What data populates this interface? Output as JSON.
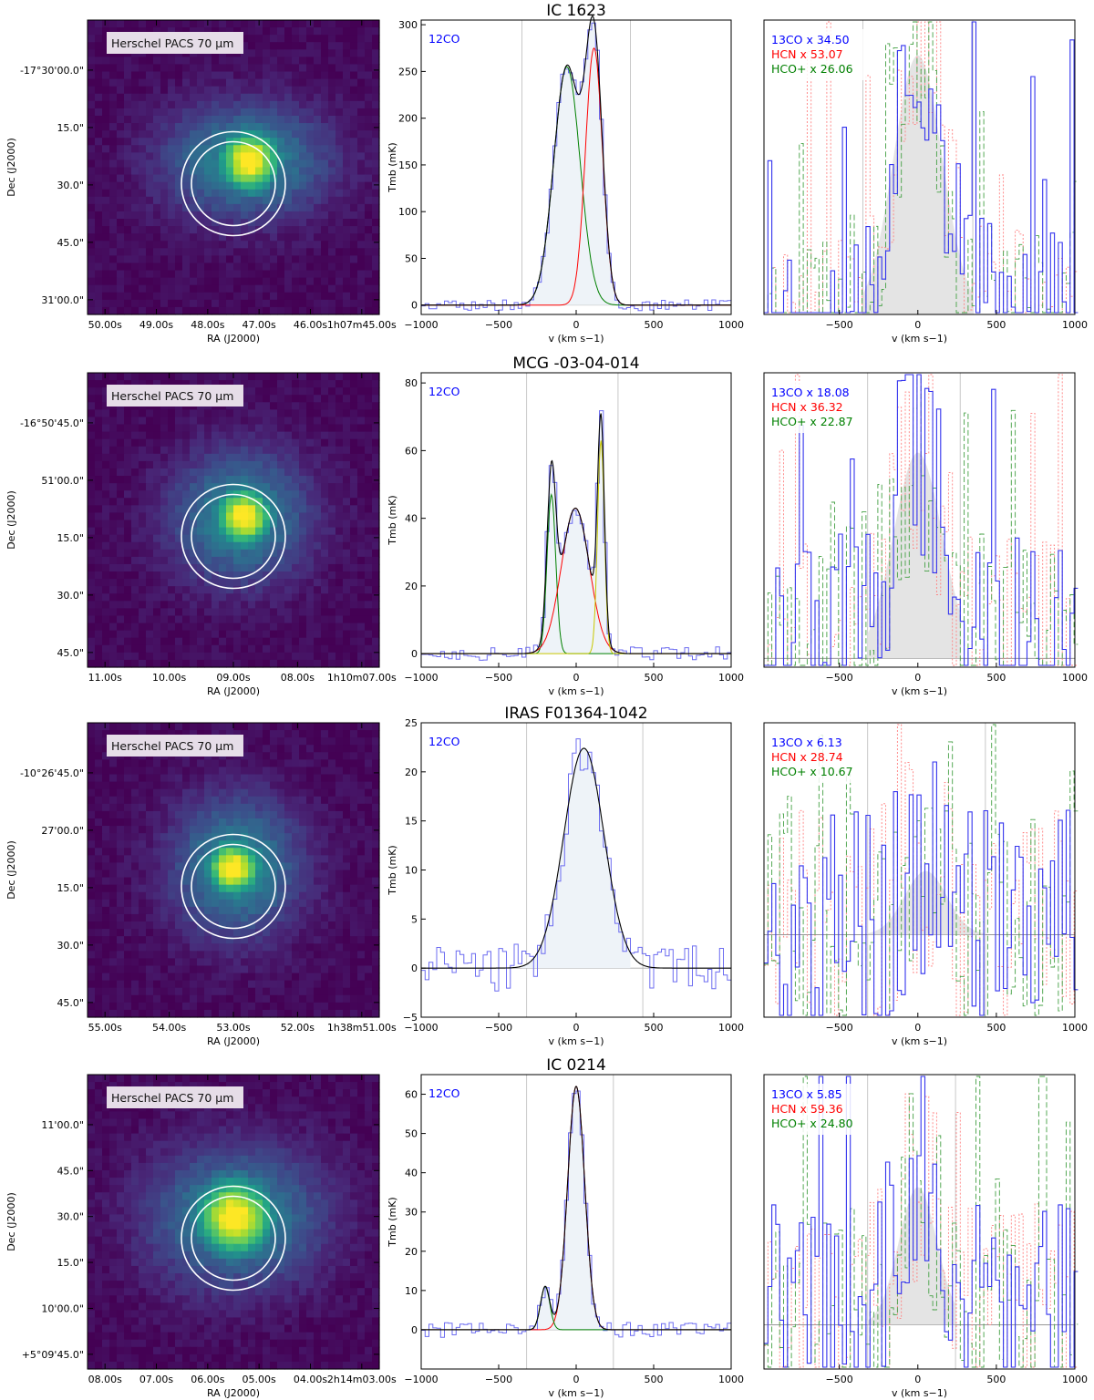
{
  "chart_data": [
    {
      "galaxy": "IC 1623",
      "image": {
        "badge": "Herschel PACS 70 μm",
        "xlabel": "RA (J2000)",
        "ylabel": "Dec (J2000)",
        "ra_ticks": [
          "50.00s",
          "49.00s",
          "48.00s",
          "47.00s",
          "46.00s",
          "1h07m45.00s"
        ],
        "dec_ticks": [
          "-17°30'00.0\"",
          "15.0\"",
          "30.0\"",
          "45.0\"",
          "31'00.0\""
        ],
        "source_offset": [
          0.55,
          -0.2
        ],
        "source_sigma": 0.16,
        "halo": {
          "offset": [
            0.45,
            -0.2
          ],
          "sigma_x": 0.38,
          "sigma_y": 0.26
        },
        "extra": {
          "offset": [
            0.65,
            -0.25
          ],
          "sigma": 0.12,
          "amp": 0.3
        }
      },
      "co12": {
        "type": "line",
        "title": "IC 1623",
        "label": "12CO",
        "xlabel": "v (km s−1)",
        "ylabel": "Tmb (mK)",
        "xlim": [
          -1000,
          1000
        ],
        "ylim": [
          -10,
          305
        ],
        "xticks": [
          -1000,
          -500,
          0,
          500,
          1000
        ],
        "yticks": [
          0,
          50,
          100,
          150,
          200,
          250,
          300
        ],
        "vlines": [
          -350,
          350
        ],
        "components": [
          {
            "amp": 255,
            "center": -60,
            "sigma": 85,
            "color": "#008000"
          },
          {
            "amp": 275,
            "center": 115,
            "sigma": 55,
            "color": "#ff0000"
          }
        ],
        "noise": 6
      },
      "dense": {
        "type": "line",
        "xlabel": "v (km s−1)",
        "xlim": [
          -980,
          1000
        ],
        "xticks": [
          -500,
          0,
          500,
          1000
        ],
        "vlines": [
          -350,
          350
        ],
        "zero_frac": 0.0,
        "legend": [
          "13CO x 34.50",
          "HCN x 53.07",
          "HCO+ x 26.06"
        ],
        "center": 0,
        "width": 230,
        "peak": 0.88,
        "noise": 0.3
      }
    },
    {
      "galaxy": "MCG -03-04-014",
      "image": {
        "badge": "Herschel PACS 70 μm",
        "xlabel": "RA (J2000)",
        "ylabel": "Dec (J2000)",
        "ra_ticks": [
          "11.00s",
          "10.00s",
          "09.00s",
          "08.00s",
          "1h10m07.00s"
        ],
        "dec_ticks": [
          "-16°50'45.0\"",
          "51'00.0\"",
          "15.0\"",
          "30.0\"",
          "45.0\""
        ],
        "source_offset": [
          0.35,
          -0.1
        ],
        "source_sigma": 0.15,
        "halo": {
          "offset": [
            0.25,
            -0.1
          ],
          "sigma_x": 0.32,
          "sigma_y": 0.3
        }
      },
      "co12": {
        "type": "line",
        "title": "MCG -03-04-014",
        "label": "12CO",
        "xlabel": "v (km s−1)",
        "ylabel": "Tmb (mK)",
        "xlim": [
          -1000,
          1000
        ],
        "ylim": [
          -4,
          83
        ],
        "xticks": [
          -1000,
          -500,
          0,
          500,
          1000
        ],
        "yticks": [
          0,
          20,
          40,
          60,
          80
        ],
        "vlines": [
          -320,
          270
        ],
        "components": [
          {
            "amp": 47,
            "center": -160,
            "sigma": 28,
            "color": "#008000"
          },
          {
            "amp": 43,
            "center": -5,
            "sigma": 90,
            "color": "#ff0000"
          },
          {
            "amp": 63,
            "center": 160,
            "sigma": 22,
            "color": "#c8c800"
          }
        ],
        "noise": 2
      },
      "dense": {
        "type": "line",
        "xlabel": "v (km s−1)",
        "xlim": [
          -980,
          1000
        ],
        "xticks": [
          -500,
          0,
          500,
          1000
        ],
        "vlines": [
          -320,
          270
        ],
        "zero_frac": 0.03,
        "legend": [
          "13CO x 18.08",
          "HCN x 36.32",
          "HCO+ x 22.87"
        ],
        "center": 0,
        "width": 230,
        "peak": 0.72,
        "noise": 0.42
      }
    },
    {
      "galaxy": "IRAS F01364-1042",
      "image": {
        "badge": "Herschel PACS 70 μm",
        "xlabel": "RA (J2000)",
        "ylabel": "Dec (J2000)",
        "ra_ticks": [
          "55.00s",
          "54.00s",
          "53.00s",
          "52.00s",
          "1h38m51.00s"
        ],
        "dec_ticks": [
          "-10°26'45.0\"",
          "27'00.0\"",
          "15.0\"",
          "30.0\"",
          "45.0\""
        ],
        "source_offset": [
          0.0,
          -0.05
        ],
        "source_sigma": 0.14,
        "halo": {
          "offset": [
            0.1,
            -0.1
          ],
          "sigma_x": 0.3,
          "sigma_y": 0.32
        }
      },
      "co12": {
        "type": "line",
        "title": "IRAS F01364-1042",
        "label": "12CO",
        "xlabel": "v (km s−1)",
        "ylabel": "Tmb (mK)",
        "xlim": [
          -1000,
          1000
        ],
        "ylim": [
          -5,
          25
        ],
        "xticks": [
          -1000,
          -500,
          0,
          500,
          1000
        ],
        "yticks": [
          -5,
          0,
          5,
          10,
          15,
          20,
          25
        ],
        "vlines": [
          -320,
          430
        ],
        "components": [
          {
            "amp": 22.4,
            "center": 50,
            "sigma": 130,
            "color": "#000000"
          }
        ],
        "noise": 2.4
      },
      "dense": {
        "type": "line",
        "xlabel": "v (km s−1)",
        "xlim": [
          -980,
          1000
        ],
        "xticks": [
          -500,
          0,
          500,
          1000
        ],
        "vlines": [
          -320,
          430
        ],
        "zero_frac": 0.28,
        "legend": [
          "13CO x 6.13",
          "HCN x 28.74",
          "HCO+ x 10.67"
        ],
        "center": 50,
        "width": 200,
        "peak": 0.3,
        "noise": 0.55
      }
    },
    {
      "galaxy": "IC 0214",
      "image": {
        "badge": "Herschel PACS 70 μm",
        "xlabel": "RA (J2000)",
        "ylabel": "Dec (J2000)",
        "ra_ticks": [
          "08.00s",
          "07.00s",
          "06.00s",
          "05.00s",
          "04.00s",
          "2h14m03.00s"
        ],
        "dec_ticks": [
          "11'00.0\"",
          "45.0\"",
          "30.0\"",
          "15.0\"",
          "10'00.0\"",
          "+5°09'45.0\""
        ],
        "source_offset": [
          0.05,
          -0.15
        ],
        "source_sigma": 0.2,
        "halo": {
          "offset": [
            0.1,
            -0.15
          ],
          "sigma_x": 0.4,
          "sigma_y": 0.32
        },
        "extra": {
          "offset": [
            0.35,
            -0.35
          ],
          "sigma": 0.12,
          "amp": 0.5
        }
      },
      "co12": {
        "type": "line",
        "title": "IC 0214",
        "label": "12CO",
        "xlabel": "v (km s−1)",
        "ylabel": "Tmb (mK)",
        "xlim": [
          -1000,
          1000
        ],
        "ylim": [
          -10,
          65
        ],
        "xticks": [
          -1000,
          -500,
          0,
          500,
          1000
        ],
        "yticks": [
          0,
          10,
          20,
          30,
          40,
          50,
          60
        ],
        "vlines": [
          -320,
          240
        ],
        "components": [
          {
            "amp": 62,
            "center": 0,
            "sigma": 55,
            "color": "#ff0000"
          },
          {
            "amp": 11,
            "center": -200,
            "sigma": 30,
            "color": "#008000"
          }
        ],
        "noise": 2
      },
      "dense": {
        "type": "line",
        "xlabel": "v (km s−1)",
        "xlim": [
          -980,
          1000
        ],
        "xticks": [
          -500,
          0,
          500,
          1000
        ],
        "vlines": [
          -320,
          240
        ],
        "zero_frac": 0.15,
        "legend": [
          "13CO x 5.85",
          "HCN x 59.36",
          "HCO+ x 24.80"
        ],
        "center": 0,
        "width": 180,
        "peak": 0.55,
        "noise": 0.45
      }
    }
  ]
}
